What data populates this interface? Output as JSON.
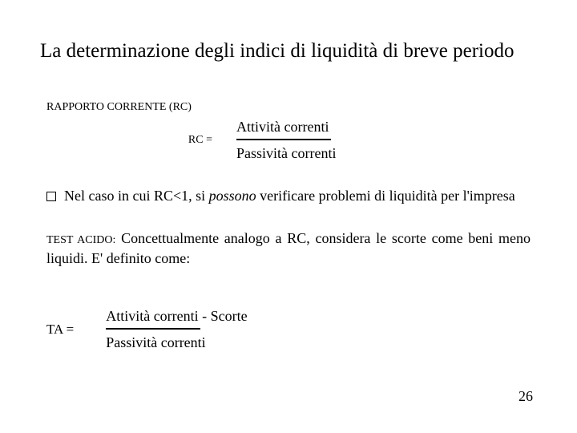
{
  "title": "La determinazione degli indici di liquidità di breve periodo",
  "section1": {
    "label": "RAPPORTO CORRENTE (RC)",
    "lhs": "RC =",
    "numerator": "Attività correnti",
    "denominator": "Passività correnti",
    "frac_line_color": "#000000",
    "frac_line_width": 118
  },
  "bullet": {
    "prefix": "Nel caso in cui RC<1, si ",
    "italic_word": "possono",
    "suffix": " verificare problemi di liquidità per l'impresa"
  },
  "section2": {
    "label": "TEST ACIDO:",
    "desc": " Concettualmente analogo a RC, considera le scorte come beni meno liquidi. E' definito come:",
    "lhs": "TA  =",
    "numerator": "Attività correnti - Scorte",
    "denominator": "Passività correnti",
    "frac_line_color": "#000000",
    "frac_line_width": 118
  },
  "page_number": "26",
  "colors": {
    "background": "#ffffff",
    "text": "#000000"
  },
  "fonts": {
    "title_size": 25,
    "body_size": 18,
    "small_size": 14
  }
}
